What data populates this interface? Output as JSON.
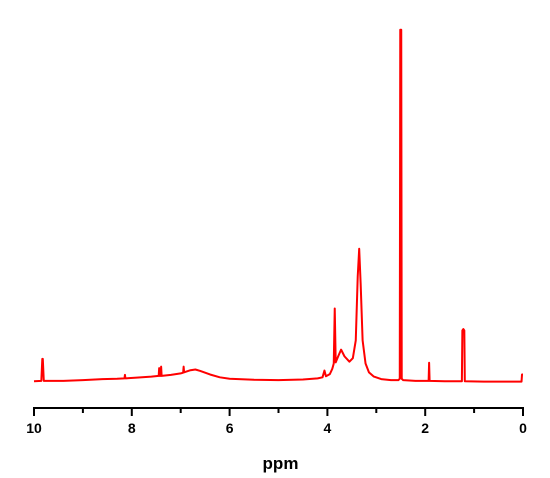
{
  "chart_data": {
    "type": "line",
    "title": "",
    "xlabel": "ppm",
    "ylabel": "",
    "xlim": [
      10,
      0
    ],
    "x_reversed": true,
    "x_ticks": [
      10,
      8,
      6,
      4,
      2,
      0
    ],
    "y_axis_visible": false,
    "ylim": [
      0,
      100
    ],
    "grid": false,
    "legend": "none",
    "series": [
      {
        "color": "#ff0000",
        "points": [
          [
            10.0,
            0.5
          ],
          [
            9.85,
            0.6
          ],
          [
            9.83,
            6.8
          ],
          [
            9.82,
            6.8
          ],
          [
            9.8,
            0.6
          ],
          [
            9.4,
            0.6
          ],
          [
            9.0,
            0.8
          ],
          [
            8.6,
            1.1
          ],
          [
            8.3,
            1.2
          ],
          [
            8.15,
            1.3
          ],
          [
            8.14,
            2.3
          ],
          [
            8.13,
            1.3
          ],
          [
            7.9,
            1.5
          ],
          [
            7.6,
            1.8
          ],
          [
            7.45,
            2.0
          ],
          [
            7.44,
            4.2
          ],
          [
            7.43,
            2.0
          ],
          [
            7.41,
            2.0
          ],
          [
            7.4,
            4.6
          ],
          [
            7.39,
            2.0
          ],
          [
            7.2,
            2.3
          ],
          [
            7.0,
            2.7
          ],
          [
            6.95,
            2.9
          ],
          [
            6.94,
            4.6
          ],
          [
            6.93,
            3.0
          ],
          [
            6.8,
            3.6
          ],
          [
            6.7,
            3.8
          ],
          [
            6.6,
            3.4
          ],
          [
            6.4,
            2.4
          ],
          [
            6.2,
            1.6
          ],
          [
            6.0,
            1.2
          ],
          [
            5.5,
            0.9
          ],
          [
            5.0,
            0.8
          ],
          [
            4.5,
            1.0
          ],
          [
            4.2,
            1.3
          ],
          [
            4.1,
            1.6
          ],
          [
            4.06,
            3.5
          ],
          [
            4.03,
            1.9
          ],
          [
            3.95,
            2.5
          ],
          [
            3.9,
            4.0
          ],
          [
            3.87,
            5.5
          ],
          [
            3.85,
            21.0
          ],
          [
            3.83,
            5.8
          ],
          [
            3.78,
            7.5
          ],
          [
            3.72,
            9.4
          ],
          [
            3.65,
            7.5
          ],
          [
            3.55,
            6.0
          ],
          [
            3.48,
            7.0
          ],
          [
            3.42,
            12.0
          ],
          [
            3.38,
            30.0
          ],
          [
            3.35,
            37.8
          ],
          [
            3.32,
            28.0
          ],
          [
            3.28,
            12.0
          ],
          [
            3.22,
            5.5
          ],
          [
            3.15,
            3.0
          ],
          [
            3.05,
            1.8
          ],
          [
            2.9,
            1.1
          ],
          [
            2.7,
            0.8
          ],
          [
            2.55,
            0.8
          ],
          [
            2.52,
            1.2
          ],
          [
            2.51,
            99.5
          ],
          [
            2.49,
            99.5
          ],
          [
            2.48,
            1.2
          ],
          [
            2.45,
            0.8
          ],
          [
            2.2,
            0.6
          ],
          [
            1.93,
            0.6
          ],
          [
            1.92,
            5.7
          ],
          [
            1.91,
            0.6
          ],
          [
            1.6,
            0.5
          ],
          [
            1.25,
            0.5
          ],
          [
            1.24,
            14.8
          ],
          [
            1.22,
            15.2
          ],
          [
            1.2,
            14.8
          ],
          [
            1.19,
            0.5
          ],
          [
            0.8,
            0.4
          ],
          [
            0.3,
            0.4
          ],
          [
            0.03,
            0.4
          ],
          [
            0.02,
            2.4
          ],
          [
            0.0,
            2.4
          ]
        ]
      }
    ]
  }
}
